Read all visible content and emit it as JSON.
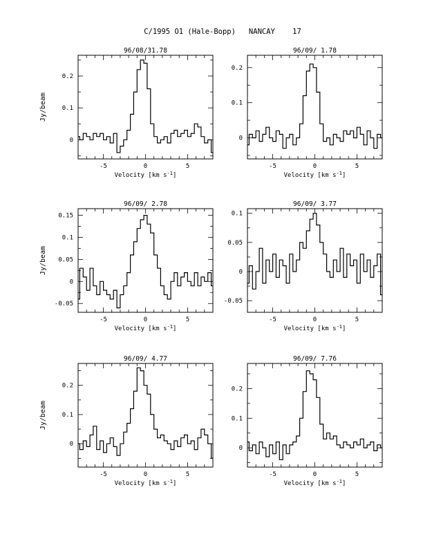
{
  "page_title": "C/1995 O1 (Hale-Bopp)   NANCAY    17",
  "colors": {
    "background": "#ffffff",
    "ink": "#000000"
  },
  "chart_data": [
    {
      "type": "line",
      "title": "96/08/31.78",
      "xlabel": "Velocity [km s⁻¹]",
      "ylabel": "Jy/beam",
      "xlim": [
        -8,
        8
      ],
      "ylim": [
        -0.06,
        0.265
      ],
      "xticks": [
        -5,
        0,
        5
      ],
      "yticks": [
        0,
        0.1,
        0.2
      ],
      "ytick_labels": [
        "0",
        "0.1",
        "0.2"
      ],
      "grid": false,
      "series": [
        {
          "x": [
            -8.0,
            -7.6,
            -7.2,
            -6.8,
            -6.4,
            -6.0,
            -5.6,
            -5.2,
            -4.8,
            -4.4,
            -4.0,
            -3.6,
            -3.2,
            -2.8,
            -2.4,
            -2.0,
            -1.6,
            -1.2,
            -0.8,
            -0.4,
            0.0,
            0.4,
            0.8,
            1.2,
            1.6,
            2.0,
            2.4,
            2.8,
            3.2,
            3.6,
            4.0,
            4.4,
            4.8,
            5.2,
            5.6,
            6.0,
            6.4,
            6.8,
            7.2,
            7.6,
            8.0
          ],
          "y": [
            0.01,
            0.0,
            0.02,
            0.01,
            0.0,
            0.02,
            0.01,
            0.02,
            0.0,
            0.01,
            -0.01,
            0.02,
            -0.04,
            -0.02,
            0.0,
            0.03,
            0.08,
            0.15,
            0.22,
            0.25,
            0.24,
            0.16,
            0.05,
            0.01,
            -0.01,
            0.0,
            0.01,
            -0.01,
            0.02,
            0.03,
            0.01,
            0.02,
            0.03,
            0.01,
            0.02,
            0.05,
            0.04,
            0.01,
            -0.01,
            0.0,
            -0.04
          ]
        }
      ]
    },
    {
      "type": "line",
      "title": "96/09/ 1.78",
      "xlabel": "Velocity [km s⁻¹]",
      "ylabel": "",
      "xlim": [
        -8,
        8
      ],
      "ylim": [
        -0.06,
        0.235
      ],
      "xticks": [
        -5,
        0,
        5
      ],
      "yticks": [
        0,
        0.1,
        0.2
      ],
      "ytick_labels": [
        "0",
        "0.1",
        "0.2"
      ],
      "grid": false,
      "series": [
        {
          "x": [
            -8.0,
            -7.6,
            -7.2,
            -6.8,
            -6.4,
            -6.0,
            -5.6,
            -5.2,
            -4.8,
            -4.4,
            -4.0,
            -3.6,
            -3.2,
            -2.8,
            -2.4,
            -2.0,
            -1.6,
            -1.2,
            -0.8,
            -0.4,
            0.0,
            0.4,
            0.8,
            1.2,
            1.6,
            2.0,
            2.4,
            2.8,
            3.2,
            3.6,
            4.0,
            4.4,
            4.8,
            5.2,
            5.6,
            6.0,
            6.4,
            6.8,
            7.2,
            7.6,
            8.0
          ],
          "y": [
            -0.02,
            0.01,
            0.0,
            0.02,
            -0.01,
            0.01,
            0.03,
            0.0,
            -0.01,
            0.02,
            0.01,
            -0.03,
            0.0,
            0.01,
            -0.02,
            0.0,
            0.04,
            0.12,
            0.19,
            0.21,
            0.2,
            0.13,
            0.04,
            -0.01,
            0.0,
            -0.02,
            0.01,
            0.0,
            -0.01,
            0.02,
            0.01,
            0.02,
            0.0,
            0.03,
            0.01,
            -0.02,
            0.02,
            0.0,
            -0.03,
            0.01,
            0.0
          ]
        }
      ]
    },
    {
      "type": "line",
      "title": "96/09/ 2.78",
      "xlabel": "Velocity [km s⁻¹]",
      "ylabel": "Jy/beam",
      "xlim": [
        -8,
        8
      ],
      "ylim": [
        -0.07,
        0.165
      ],
      "xticks": [
        -5,
        0,
        5
      ],
      "yticks": [
        -0.05,
        0,
        0.05,
        0.1,
        0.15
      ],
      "ytick_labels": [
        "-0.05",
        "0",
        "0.05",
        "0.1",
        "0.15"
      ],
      "grid": false,
      "series": [
        {
          "x": [
            -8.0,
            -7.6,
            -7.2,
            -6.8,
            -6.4,
            -6.0,
            -5.6,
            -5.2,
            -4.8,
            -4.4,
            -4.0,
            -3.6,
            -3.2,
            -2.8,
            -2.4,
            -2.0,
            -1.6,
            -1.2,
            -0.8,
            -0.4,
            0.0,
            0.4,
            0.8,
            1.2,
            1.6,
            2.0,
            2.4,
            2.8,
            3.2,
            3.6,
            4.0,
            4.4,
            4.8,
            5.2,
            5.6,
            6.0,
            6.4,
            6.8,
            7.2,
            7.6,
            8.0
          ],
          "y": [
            -0.04,
            0.03,
            0.01,
            -0.02,
            0.03,
            -0.01,
            -0.03,
            0.0,
            -0.02,
            -0.03,
            -0.04,
            -0.02,
            -0.06,
            -0.03,
            -0.01,
            0.02,
            0.06,
            0.09,
            0.12,
            0.14,
            0.15,
            0.13,
            0.11,
            0.06,
            0.03,
            -0.01,
            -0.03,
            -0.04,
            0.0,
            0.02,
            -0.01,
            0.01,
            0.02,
            0.0,
            -0.01,
            0.02,
            -0.01,
            0.01,
            0.0,
            0.02,
            -0.01
          ]
        }
      ]
    },
    {
      "type": "line",
      "title": "96/09/ 3.77",
      "xlabel": "Velocity [km s⁻¹]",
      "ylabel": "",
      "xlim": [
        -8,
        8
      ],
      "ylim": [
        -0.07,
        0.108
      ],
      "xticks": [
        -5,
        0,
        5
      ],
      "yticks": [
        -0.05,
        0,
        0.05,
        0.1
      ],
      "ytick_labels": [
        "-0.05",
        "0",
        "0.05",
        "0.1"
      ],
      "grid": false,
      "series": [
        {
          "x": [
            -8.0,
            -7.6,
            -7.2,
            -6.8,
            -6.4,
            -6.0,
            -5.6,
            -5.2,
            -4.8,
            -4.4,
            -4.0,
            -3.6,
            -3.2,
            -2.8,
            -2.4,
            -2.0,
            -1.6,
            -1.2,
            -0.8,
            -0.4,
            0.0,
            0.4,
            0.8,
            1.2,
            1.6,
            2.0,
            2.4,
            2.8,
            3.2,
            3.6,
            4.0,
            4.4,
            4.8,
            5.2,
            5.6,
            6.0,
            6.4,
            6.8,
            7.2,
            7.6,
            8.0
          ],
          "y": [
            -0.02,
            0.01,
            -0.03,
            0.0,
            0.04,
            -0.02,
            0.02,
            0.0,
            0.03,
            -0.01,
            0.02,
            0.01,
            -0.02,
            0.03,
            0.0,
            0.02,
            0.05,
            0.04,
            0.07,
            0.09,
            0.1,
            0.08,
            0.05,
            0.03,
            0.0,
            -0.01,
            0.02,
            0.0,
            0.04,
            -0.01,
            0.03,
            0.01,
            0.02,
            -0.02,
            0.03,
            0.0,
            0.02,
            -0.01,
            0.01,
            0.03,
            -0.04
          ]
        }
      ]
    },
    {
      "type": "line",
      "title": "96/09/ 4.77",
      "xlabel": "Velocity [km s⁻¹]",
      "ylabel": "Jy/beam",
      "xlim": [
        -8,
        8
      ],
      "ylim": [
        -0.08,
        0.275
      ],
      "xticks": [
        -5,
        0,
        5
      ],
      "yticks": [
        0,
        0.1,
        0.2
      ],
      "ytick_labels": [
        "0",
        "0.1",
        "0.2"
      ],
      "grid": false,
      "series": [
        {
          "x": [
            -8.0,
            -7.6,
            -7.2,
            -6.8,
            -6.4,
            -6.0,
            -5.6,
            -5.2,
            -4.8,
            -4.4,
            -4.0,
            -3.6,
            -3.2,
            -2.8,
            -2.4,
            -2.0,
            -1.6,
            -1.2,
            -0.8,
            -0.4,
            0.0,
            0.4,
            0.8,
            1.2,
            1.6,
            2.0,
            2.4,
            2.8,
            3.2,
            3.6,
            4.0,
            4.4,
            4.8,
            5.2,
            5.6,
            6.0,
            6.4,
            6.8,
            7.2,
            7.6,
            8.0
          ],
          "y": [
            0.0,
            -0.02,
            0.01,
            -0.01,
            0.03,
            0.06,
            -0.02,
            0.01,
            -0.03,
            0.0,
            0.02,
            -0.01,
            -0.04,
            0.0,
            0.04,
            0.07,
            0.12,
            0.18,
            0.26,
            0.25,
            0.2,
            0.17,
            0.1,
            0.05,
            0.02,
            0.03,
            0.01,
            0.0,
            -0.02,
            0.01,
            -0.01,
            0.02,
            0.03,
            0.0,
            0.01,
            -0.02,
            0.02,
            0.05,
            0.03,
            0.0,
            -0.05
          ]
        }
      ]
    },
    {
      "type": "line",
      "title": "96/09/ 7.76",
      "xlabel": "Velocity [km s⁻¹]",
      "ylabel": "",
      "xlim": [
        -8,
        8
      ],
      "ylim": [
        -0.065,
        0.285
      ],
      "xticks": [
        -5,
        0,
        5
      ],
      "yticks": [
        0,
        0.1,
        0.2
      ],
      "ytick_labels": [
        "0",
        "0.1",
        "0.2"
      ],
      "grid": false,
      "series": [
        {
          "x": [
            -8.0,
            -7.6,
            -7.2,
            -6.8,
            -6.4,
            -6.0,
            -5.6,
            -5.2,
            -4.8,
            -4.4,
            -4.0,
            -3.6,
            -3.2,
            -2.8,
            -2.4,
            -2.0,
            -1.6,
            -1.2,
            -0.8,
            -0.4,
            0.0,
            0.4,
            0.8,
            1.2,
            1.6,
            2.0,
            2.4,
            2.8,
            3.2,
            3.6,
            4.0,
            4.4,
            4.8,
            5.2,
            5.6,
            6.0,
            6.4,
            6.8,
            7.2,
            7.6,
            8.0
          ],
          "y": [
            0.02,
            -0.01,
            0.01,
            -0.02,
            0.02,
            0.0,
            -0.03,
            0.01,
            -0.02,
            0.02,
            -0.04,
            0.01,
            -0.02,
            0.01,
            0.02,
            0.04,
            0.1,
            0.19,
            0.26,
            0.25,
            0.23,
            0.17,
            0.08,
            0.03,
            0.05,
            0.03,
            0.04,
            0.01,
            0.0,
            0.02,
            0.01,
            0.0,
            0.02,
            0.01,
            0.03,
            0.0,
            0.01,
            0.02,
            -0.01,
            0.01,
            0.0
          ]
        }
      ]
    }
  ]
}
